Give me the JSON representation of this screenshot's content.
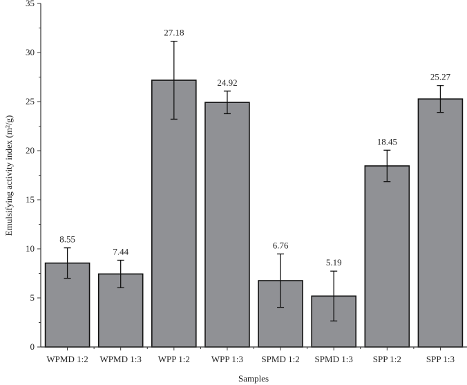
{
  "chart_data": {
    "type": "bar",
    "title": "",
    "xlabel": "Samples",
    "ylabel": "Emulsifying activity index (m²/g)",
    "ylim": [
      0,
      35
    ],
    "yticks": [
      0,
      5,
      10,
      15,
      20,
      25,
      30,
      35
    ],
    "grid": false,
    "categories": [
      "WPMD 1:2",
      "WPMD 1:3",
      "WPP 1:2",
      "WPP 1:3",
      "SPMD 1:2",
      "SPMD 1:3",
      "SPP 1:2",
      "SPP 1:3"
    ],
    "values": [
      8.55,
      7.44,
      27.18,
      24.92,
      6.76,
      5.19,
      18.45,
      25.27
    ],
    "value_labels": [
      "8.55",
      "7.44",
      "27.18",
      "24.92",
      "6.76",
      "5.19",
      "18.45",
      "25.27"
    ],
    "errors": [
      1.55,
      1.4,
      3.97,
      1.15,
      2.72,
      2.54,
      1.6,
      1.37
    ],
    "bar_color": "#909195"
  }
}
